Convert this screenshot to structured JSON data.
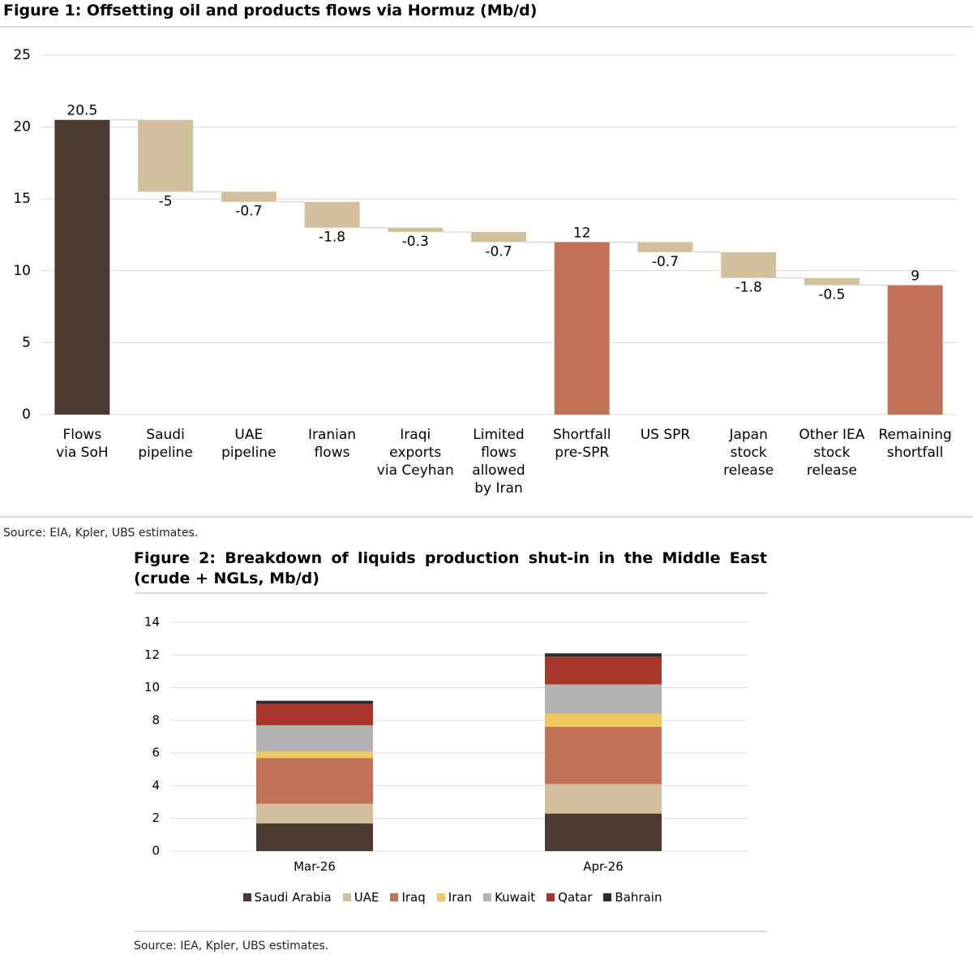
{
  "chart_data": [
    {
      "type": "waterfall",
      "title": "Figure 1: Offsetting oil and products flows via Hormuz (Mb/d)",
      "categories": [
        "Flows\nvia SoH",
        "Saudi\npipeline",
        "UAE\npipeline",
        "Iranian\nflows",
        "Iraqi\nexports\nvia Ceyhan",
        "Limited\nflows\nallowed\nby Iran",
        "Shortfall\npre-SPR",
        "US SPR",
        "Japan\nstock\nrelease",
        "Other IEA\nstock\nrelease",
        "Remaining\nshortfall"
      ],
      "values": [
        20.5,
        -5,
        -0.7,
        -1.8,
        -0.3,
        -0.7,
        12,
        -0.7,
        -1.8,
        -0.5,
        9
      ],
      "colors": [
        "#4b3a2f",
        "#d2bf9e",
        "#d2bf9e",
        "#d2bf9e",
        "#d2bf9e",
        "#d2bf9e",
        "#c07157",
        "#d2bf9e",
        "#d2bf9e",
        "#d2bf9e",
        "#c07157"
      ],
      "ylim": [
        0,
        25
      ],
      "yticks": [
        0,
        5,
        10,
        15,
        20,
        25
      ],
      "grid": true,
      "source": "Source: EIA, Kpler, UBS estimates."
    },
    {
      "type": "bar",
      "stacked": true,
      "title": "Figure 2: Breakdown of liquids production shut-in in the Middle East (crude + NGLs, Mb/d)",
      "categories": [
        "Mar-26",
        "Apr-26"
      ],
      "series": [
        {
          "name": "Saudi Arabia",
          "color": "#4b3a2f",
          "values": [
            1.7,
            2.3
          ]
        },
        {
          "name": "UAE",
          "color": "#d2bf9e",
          "values": [
            1.2,
            1.8
          ]
        },
        {
          "name": "Iraq",
          "color": "#c07157",
          "values": [
            2.8,
            3.5
          ]
        },
        {
          "name": "Iran",
          "color": "#f0c75e",
          "values": [
            0.4,
            0.8
          ]
        },
        {
          "name": "Kuwait",
          "color": "#b2b2b2",
          "values": [
            1.6,
            1.8
          ]
        },
        {
          "name": "Qatar",
          "color": "#a6372a",
          "values": [
            1.3,
            1.7
          ]
        },
        {
          "name": "Bahrain",
          "color": "#2b2b2b",
          "values": [
            0.2,
            0.2
          ]
        }
      ],
      "ylim": [
        0,
        14
      ],
      "yticks": [
        0,
        2,
        4,
        6,
        8,
        10,
        12,
        14
      ],
      "grid": true,
      "source": "Source: IEA, Kpler, UBS estimates."
    }
  ]
}
